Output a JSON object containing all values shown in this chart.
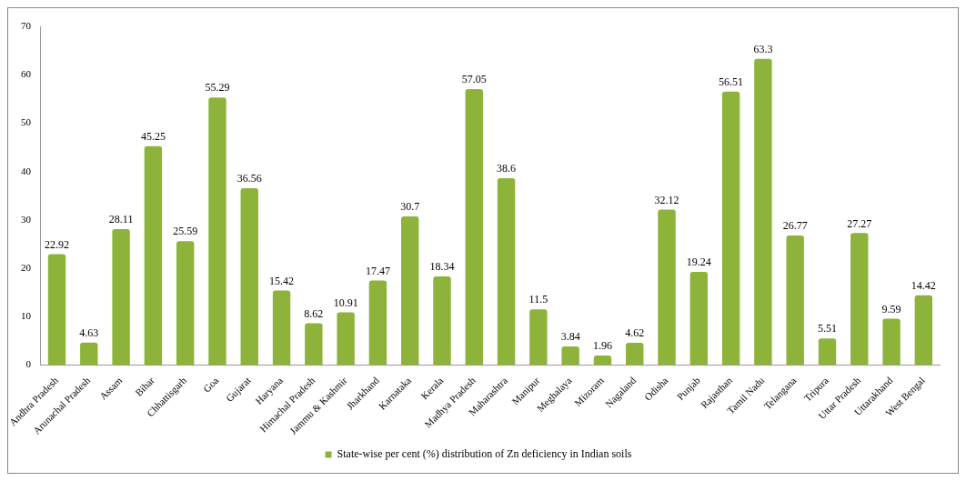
{
  "chart_data": {
    "type": "bar",
    "categories": [
      "Andhra Pradesh",
      "Arunachal Pradesh",
      "Assam",
      "Bihar",
      "Chhattisgarh",
      "Goa",
      "Gujarat",
      "Haryana",
      "Himachal Pradesh",
      "Jammu & Kashmir",
      "Jharkhand",
      "Karnataka",
      "Kerala",
      "Madhya Pradesh",
      "Maharashtra",
      "Manipur",
      "Meghalaya",
      "Mizoram",
      "Nagaland",
      "Odisha",
      "Punjab",
      "Rajasthan",
      "Tamil Nadu",
      "Telangana",
      "Tripura",
      "Uttar Pradesh",
      "Uttarakhand",
      "West Bengal"
    ],
    "series": [
      {
        "name": "State-wise per cent (%) distribution of Zn deficiency in Indian soils",
        "color": "#8db33a",
        "values": [
          22.92,
          4.63,
          28.11,
          45.25,
          25.59,
          55.29,
          36.56,
          15.42,
          8.62,
          10.91,
          17.47,
          30.7,
          18.34,
          57.05,
          38.6,
          11.5,
          3.84,
          1.96,
          4.62,
          32.12,
          19.24,
          56.51,
          63.3,
          26.77,
          5.51,
          27.27,
          9.59,
          14.42
        ]
      }
    ],
    "ylim": [
      0,
      70
    ],
    "yticks": [
      0,
      10,
      20,
      30,
      40,
      50,
      60,
      70
    ],
    "grid": false,
    "legend": "bottom",
    "data_labels": true
  }
}
